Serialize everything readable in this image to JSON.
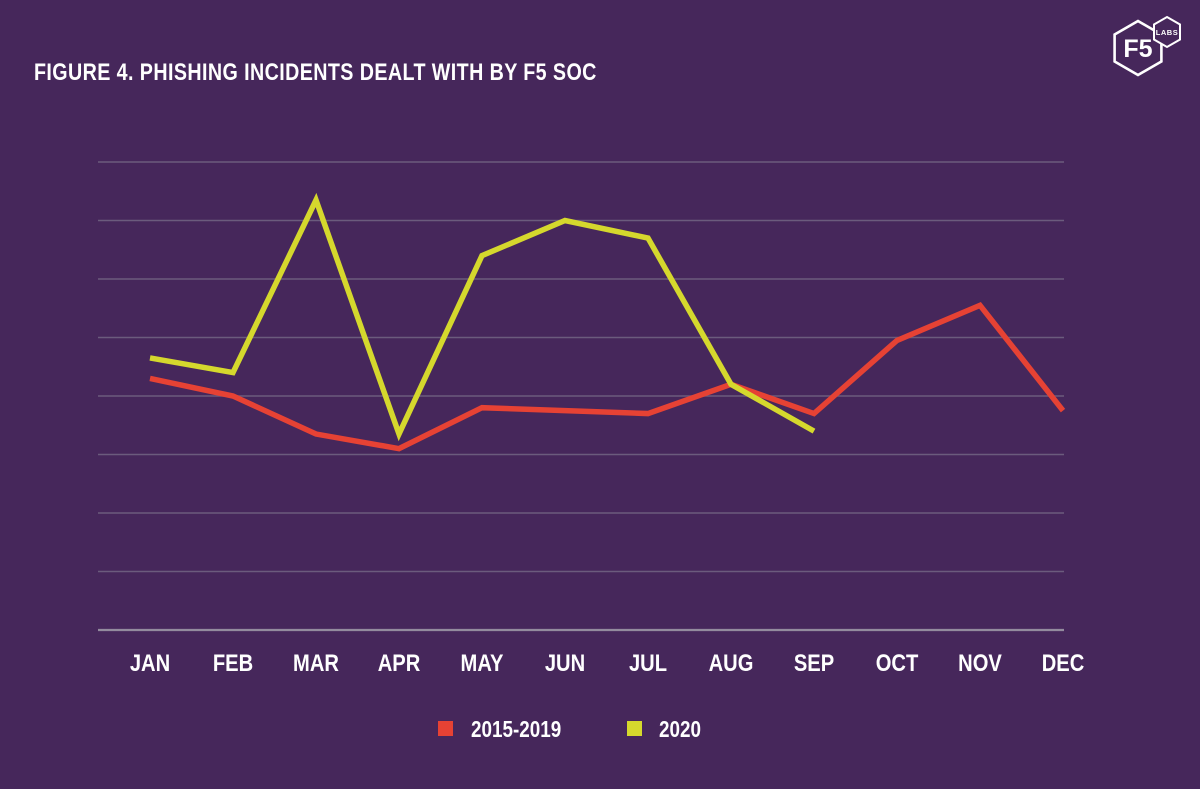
{
  "header": {
    "title": "FIGURE 4. PHISHING INCIDENTS DEALT WITH BY F5 SOC"
  },
  "logo": {
    "primary": "F5",
    "secondary": "LABS"
  },
  "colors": {
    "background": "#46275b",
    "title_text": "#ffffff",
    "axis_label_text": "#ffffff",
    "gridline": "#6b5b7d",
    "axis_line": "#938b9e",
    "series_2015_2019": "#e64234",
    "series_2020": "#d5d82d"
  },
  "chart_data": {
    "type": "line",
    "title": "FIGURE 4. PHISHING INCIDENTS DEALT WITH BY F5 SOC",
    "xlabel": "",
    "ylabel": "",
    "categories": [
      "JAN",
      "FEB",
      "MAR",
      "APR",
      "MAY",
      "JUN",
      "JUL",
      "AUG",
      "SEP",
      "OCT",
      "NOV",
      "DEC"
    ],
    "series": [
      {
        "name": "2015-2019",
        "color": "#e64234",
        "values": [
          4.3,
          4.0,
          3.35,
          3.1,
          3.8,
          3.75,
          3.7,
          4.2,
          3.7,
          4.95,
          5.55,
          3.75
        ]
      },
      {
        "name": "2020",
        "color": "#d5d82d",
        "values": [
          4.65,
          4.4,
          7.35,
          3.35,
          6.4,
          7.0,
          6.7,
          4.2,
          3.4
        ]
      }
    ],
    "y_axis_tick_labels_visible": false,
    "value_units": "relative gridline units (no y-axis labels shown; baseline axis = 0, one unit per gridline interval)",
    "ylim": [
      0,
      8.4
    ],
    "gridline_values": [
      0,
      1,
      2,
      3,
      4,
      5,
      6,
      7,
      8
    ],
    "grid": "horizontal only",
    "legend_position": "bottom-center"
  }
}
